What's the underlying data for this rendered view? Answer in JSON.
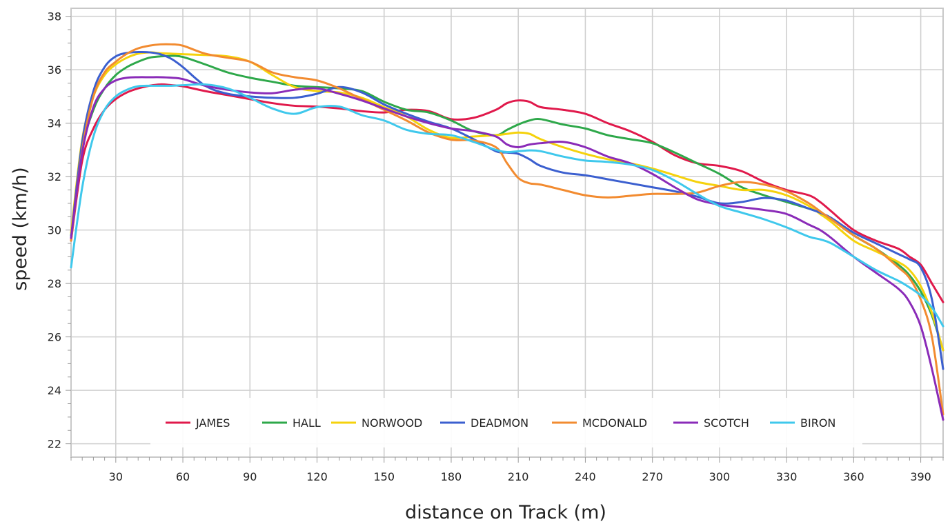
{
  "chart_data": {
    "type": "line",
    "xlabel": "distance on Track (m)",
    "ylabel": "speed (km/h)",
    "xlim": [
      10,
      400
    ],
    "ylim": [
      21.5,
      38.3
    ],
    "x_ticks": [
      30,
      60,
      90,
      120,
      150,
      180,
      210,
      240,
      270,
      300,
      330,
      360,
      390
    ],
    "y_ticks": [
      22,
      24,
      26,
      28,
      30,
      32,
      34,
      36,
      38
    ],
    "grid": true,
    "legend_position": "bottom-center",
    "x": [
      10,
      15,
      20,
      25,
      30,
      35,
      40,
      45,
      50,
      55,
      60,
      70,
      80,
      90,
      100,
      110,
      120,
      130,
      140,
      150,
      160,
      170,
      180,
      190,
      200,
      205,
      210,
      215,
      220,
      230,
      240,
      250,
      260,
      270,
      280,
      290,
      300,
      310,
      320,
      330,
      340,
      345,
      350,
      360,
      370,
      380,
      385,
      390,
      395,
      400
    ],
    "series": [
      {
        "name": "JAMES",
        "color": "#e0194b",
        "values": [
          29.6,
          32.6,
          33.8,
          34.5,
          34.9,
          35.15,
          35.3,
          35.4,
          35.45,
          35.42,
          35.38,
          35.2,
          35.05,
          34.9,
          34.75,
          34.65,
          34.62,
          34.55,
          34.45,
          34.4,
          34.5,
          34.45,
          34.15,
          34.2,
          34.5,
          34.75,
          34.85,
          34.8,
          34.6,
          34.5,
          34.35,
          34.0,
          33.7,
          33.3,
          32.8,
          32.5,
          32.4,
          32.2,
          31.8,
          31.5,
          31.3,
          31.05,
          30.7,
          30.0,
          29.6,
          29.3,
          29.0,
          28.7,
          28.0,
          27.3
        ]
      },
      {
        "name": "HALL",
        "color": "#2ea84a",
        "values": [
          29.8,
          33.0,
          34.5,
          35.3,
          35.8,
          36.1,
          36.3,
          36.45,
          36.5,
          36.52,
          36.48,
          36.2,
          35.9,
          35.7,
          35.55,
          35.4,
          35.35,
          35.3,
          35.2,
          34.8,
          34.5,
          34.4,
          34.1,
          33.7,
          33.55,
          33.75,
          33.95,
          34.1,
          34.15,
          33.95,
          33.8,
          33.55,
          33.4,
          33.25,
          32.9,
          32.5,
          32.1,
          31.6,
          31.3,
          31.05,
          30.8,
          30.65,
          30.4,
          29.8,
          29.3,
          28.7,
          28.3,
          27.7,
          26.8,
          25.5
        ]
      },
      {
        "name": "NORWOOD",
        "color": "#f5d20c",
        "values": [
          29.9,
          33.4,
          35.0,
          35.8,
          36.2,
          36.45,
          36.6,
          36.65,
          36.62,
          36.6,
          36.58,
          36.55,
          36.5,
          36.3,
          35.8,
          35.35,
          35.2,
          35.15,
          34.95,
          34.6,
          34.25,
          33.75,
          33.45,
          33.5,
          33.55,
          33.6,
          33.65,
          33.6,
          33.4,
          33.1,
          32.85,
          32.65,
          32.5,
          32.3,
          32.05,
          31.8,
          31.65,
          31.5,
          31.5,
          31.3,
          30.9,
          30.6,
          30.3,
          29.6,
          29.2,
          28.8,
          28.5,
          27.9,
          26.9,
          25.5
        ]
      },
      {
        "name": "DEADMON",
        "color": "#3b5fcf",
        "values": [
          29.7,
          33.3,
          35.2,
          36.1,
          36.5,
          36.63,
          36.66,
          36.65,
          36.58,
          36.4,
          36.1,
          35.4,
          35.1,
          35.0,
          34.95,
          34.95,
          35.1,
          35.35,
          35.15,
          34.7,
          34.35,
          34.05,
          33.8,
          33.4,
          32.95,
          32.9,
          32.85,
          32.65,
          32.4,
          32.15,
          32.05,
          31.9,
          31.75,
          31.6,
          31.45,
          31.25,
          31.0,
          31.05,
          31.2,
          31.1,
          30.8,
          30.65,
          30.45,
          29.9,
          29.5,
          29.1,
          28.9,
          28.6,
          27.4,
          24.8
        ]
      },
      {
        "name": "MCDONALD",
        "color": "#f28b30",
        "values": [
          29.6,
          33.0,
          35.0,
          35.9,
          36.3,
          36.6,
          36.8,
          36.9,
          36.95,
          36.95,
          36.9,
          36.6,
          36.45,
          36.3,
          35.9,
          35.72,
          35.6,
          35.3,
          34.9,
          34.5,
          34.1,
          33.65,
          33.38,
          33.35,
          33.1,
          32.5,
          31.95,
          31.75,
          31.7,
          31.5,
          31.3,
          31.22,
          31.28,
          31.35,
          31.35,
          31.4,
          31.65,
          31.8,
          31.7,
          31.45,
          31.0,
          30.7,
          30.4,
          29.8,
          29.3,
          28.6,
          28.2,
          27.4,
          26.0,
          23.1
        ]
      },
      {
        "name": "SCOTCH",
        "color": "#8a2bb8",
        "values": [
          29.7,
          32.9,
          34.6,
          35.3,
          35.6,
          35.7,
          35.72,
          35.72,
          35.72,
          35.7,
          35.65,
          35.4,
          35.25,
          35.15,
          35.12,
          35.25,
          35.3,
          35.1,
          34.85,
          34.55,
          34.25,
          34.0,
          33.8,
          33.7,
          33.5,
          33.2,
          33.1,
          33.2,
          33.25,
          33.3,
          33.1,
          32.75,
          32.5,
          32.1,
          31.6,
          31.15,
          30.95,
          30.85,
          30.75,
          30.6,
          30.2,
          30.0,
          29.7,
          29.0,
          28.4,
          27.8,
          27.3,
          26.4,
          24.8,
          22.9
        ]
      },
      {
        "name": "BIRON",
        "color": "#3fc8ec",
        "values": [
          28.6,
          31.6,
          33.5,
          34.5,
          35.0,
          35.25,
          35.38,
          35.4,
          35.4,
          35.4,
          35.42,
          35.45,
          35.3,
          34.95,
          34.55,
          34.35,
          34.6,
          34.62,
          34.3,
          34.1,
          33.75,
          33.6,
          33.55,
          33.3,
          33.0,
          32.92,
          32.95,
          32.98,
          32.95,
          32.75,
          32.6,
          32.55,
          32.45,
          32.25,
          31.85,
          31.35,
          30.9,
          30.65,
          30.4,
          30.1,
          29.75,
          29.65,
          29.5,
          29.0,
          28.5,
          28.1,
          27.85,
          27.55,
          27.1,
          26.4
        ]
      }
    ]
  }
}
